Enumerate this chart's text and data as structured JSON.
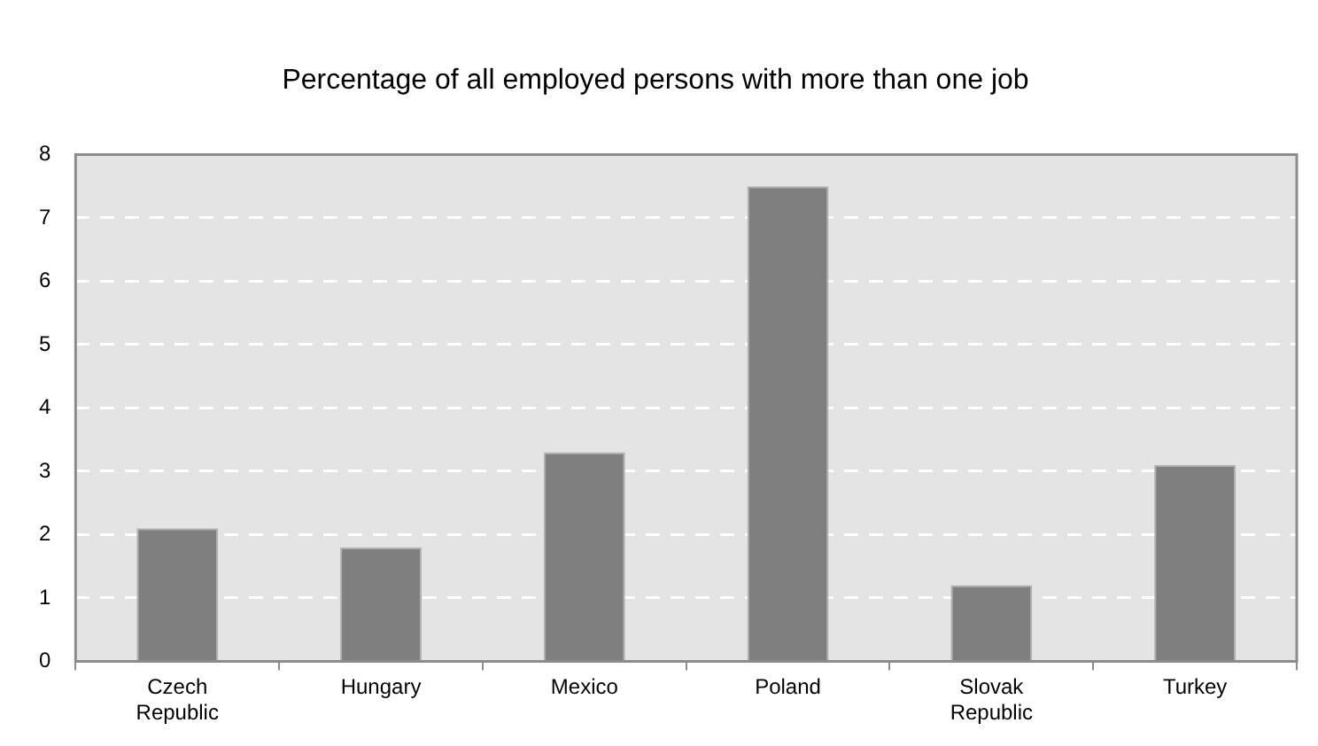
{
  "chart_data": {
    "type": "bar",
    "title": "Percentage of all employed persons with more than one job",
    "categories": [
      "Czech Republic",
      "Hungary",
      "Mexico",
      "Poland",
      "Slovak Republic",
      "Turkey"
    ],
    "values": [
      2.1,
      1.8,
      3.3,
      7.5,
      1.2,
      3.1
    ],
    "color": "#7f7f7f",
    "ylim": [
      0,
      8
    ],
    "yticks": [
      0,
      1,
      2,
      3,
      4,
      5,
      6,
      7,
      8
    ],
    "grid": "y"
  }
}
